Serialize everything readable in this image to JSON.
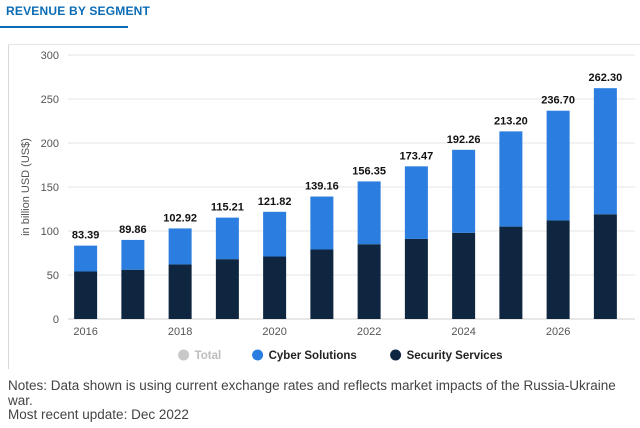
{
  "header": {
    "tab_title": "REVENUE BY SEGMENT"
  },
  "chart_data": {
    "type": "bar",
    "stacked": true,
    "title": "",
    "xlabel": "",
    "ylabel": "in billion USD (US$)",
    "ylim": [
      0,
      300
    ],
    "yticks": [
      0,
      50,
      100,
      150,
      200,
      250,
      300
    ],
    "categories": [
      "2016",
      "2017",
      "2018",
      "2019",
      "2020",
      "2021",
      "2022",
      "2023",
      "2024",
      "2025",
      "2026",
      "2027"
    ],
    "x_tick_labels": [
      "2016",
      "",
      "2018",
      "",
      "2020",
      "",
      "2022",
      "",
      "2024",
      "",
      "2026",
      ""
    ],
    "series": [
      {
        "name": "Security Services",
        "color": "#0f2640",
        "values": [
          54,
          56,
          62,
          68,
          71,
          79,
          85,
          91,
          98,
          105,
          112,
          119
        ]
      },
      {
        "name": "Cyber Solutions",
        "color": "#2b7de0",
        "values": [
          29.39,
          33.86,
          40.92,
          47.21,
          50.82,
          60.16,
          71.35,
          82.47,
          94.26,
          108.2,
          124.7,
          143.3
        ]
      }
    ],
    "totals": [
      83.39,
      89.86,
      102.92,
      115.21,
      121.82,
      139.16,
      156.35,
      173.47,
      192.26,
      213.2,
      236.7,
      262.3
    ],
    "total_labels": [
      "83.39",
      "89.86",
      "102.92",
      "115.21",
      "121.82",
      "139.16",
      "156.35",
      "173.47",
      "192.26",
      "213.20",
      "236.70",
      "262.30"
    ],
    "legend": [
      {
        "name": "Total",
        "color": "#c8c8c8",
        "muted": true
      },
      {
        "name": "Cyber Solutions",
        "color": "#2b7de0",
        "muted": false
      },
      {
        "name": "Security Services",
        "color": "#0f2640",
        "muted": false
      }
    ],
    "legend_position": "bottom-center",
    "grid": true
  },
  "notes": {
    "text": "Notes: Data shown is using current exchange rates and reflects market impacts of the Russia-Ukraine war.",
    "update": "Most recent update: Dec 2022"
  }
}
